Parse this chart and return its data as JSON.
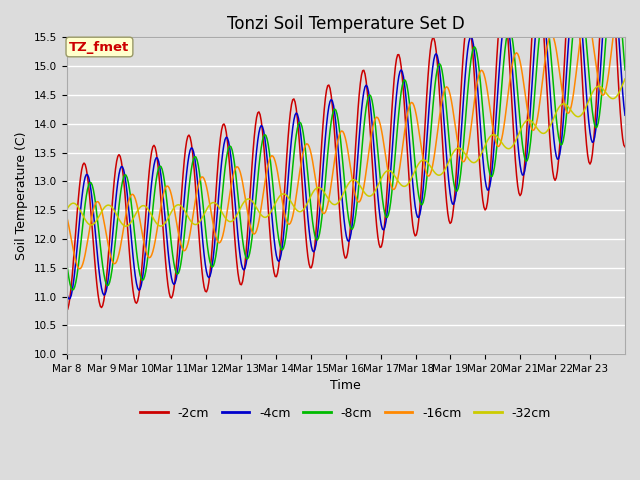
{
  "title": "Tonzi Soil Temperature Set D",
  "xlabel": "Time",
  "ylabel": "Soil Temperature (C)",
  "ylim": [
    10.0,
    15.5
  ],
  "yticks": [
    10.0,
    10.5,
    11.0,
    11.5,
    12.0,
    12.5,
    13.0,
    13.5,
    14.0,
    14.5,
    15.0,
    15.5
  ],
  "bg_color": "#dcdcdc",
  "lines": [
    {
      "label": "-2cm",
      "color": "#cc0000",
      "amp": 1.25,
      "phase": 0.0,
      "lag": 0.0,
      "amp_growth": 0.04
    },
    {
      "label": "-4cm",
      "color": "#0000cc",
      "amp": 1.05,
      "phase": 0.0,
      "lag": 0.08,
      "amp_growth": 0.03
    },
    {
      "label": "-8cm",
      "color": "#00bb00",
      "amp": 0.9,
      "phase": 0.0,
      "lag": 0.18,
      "amp_growth": 0.025
    },
    {
      "label": "-16cm",
      "color": "#ff8800",
      "amp": 0.55,
      "phase": 0.0,
      "lag": 0.38,
      "amp_growth": 0.015
    },
    {
      "label": "-32cm",
      "color": "#cccc00",
      "amp": 0.18,
      "phase": 0.0,
      "lag": 0.7,
      "amp_growth": 0.005
    }
  ],
  "annotation_text": "TZ_fmet",
  "annotation_color": "#cc0000",
  "annotation_bg": "#ffffcc",
  "annotation_border": "#999966",
  "x_tick_labels": [
    "Mar 8",
    "Mar 9",
    "Mar 10",
    "Mar 11",
    "Mar 12",
    "Mar 13",
    "Mar 14",
    "Mar 15",
    "Mar 16",
    "Mar 17",
    "Mar 18",
    "Mar 19",
    "Mar 20",
    "Mar 21",
    "Mar 22",
    "Mar 23"
  ],
  "title_fontsize": 12,
  "axis_label_fontsize": 9,
  "tick_fontsize": 7.5,
  "legend_fontsize": 9,
  "line_width": 1.1,
  "n_points": 480,
  "days": 16
}
